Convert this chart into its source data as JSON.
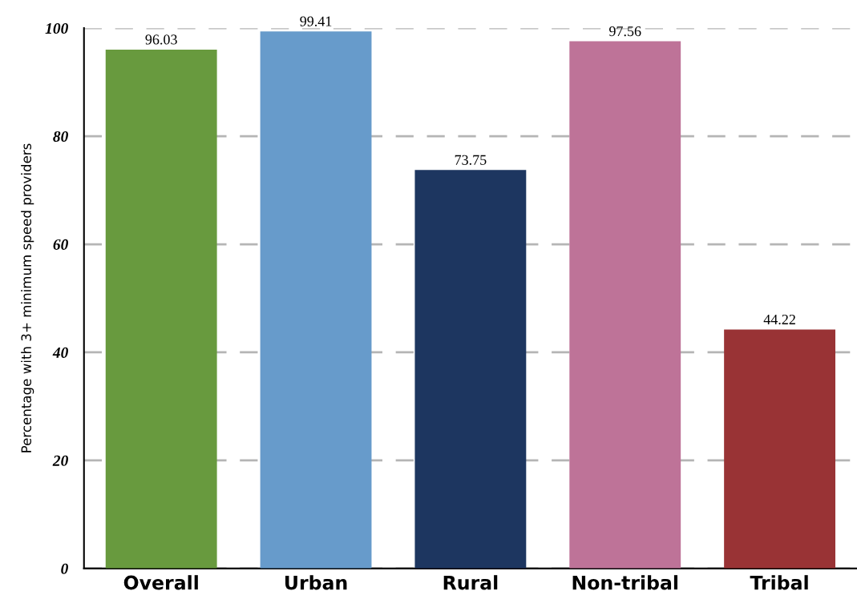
{
  "chart_data": {
    "type": "bar",
    "ylabel": "Percentage with 3+ minimum speed providers",
    "categories": [
      "Overall",
      "Urban",
      "Rural",
      "Non-tribal",
      "Tribal"
    ],
    "values": [
      96.03,
      99.41,
      73.75,
      97.56,
      44.22
    ],
    "colors": [
      "#689a3e",
      "#679bcb",
      "#1d3660",
      "#be7398",
      "#993335"
    ],
    "data_labels": true,
    "ylim": [
      0,
      100
    ],
    "yticks": [
      0,
      20,
      40,
      60,
      80,
      100
    ],
    "grid": "y",
    "line_style": "dashed",
    "legend": false
  }
}
